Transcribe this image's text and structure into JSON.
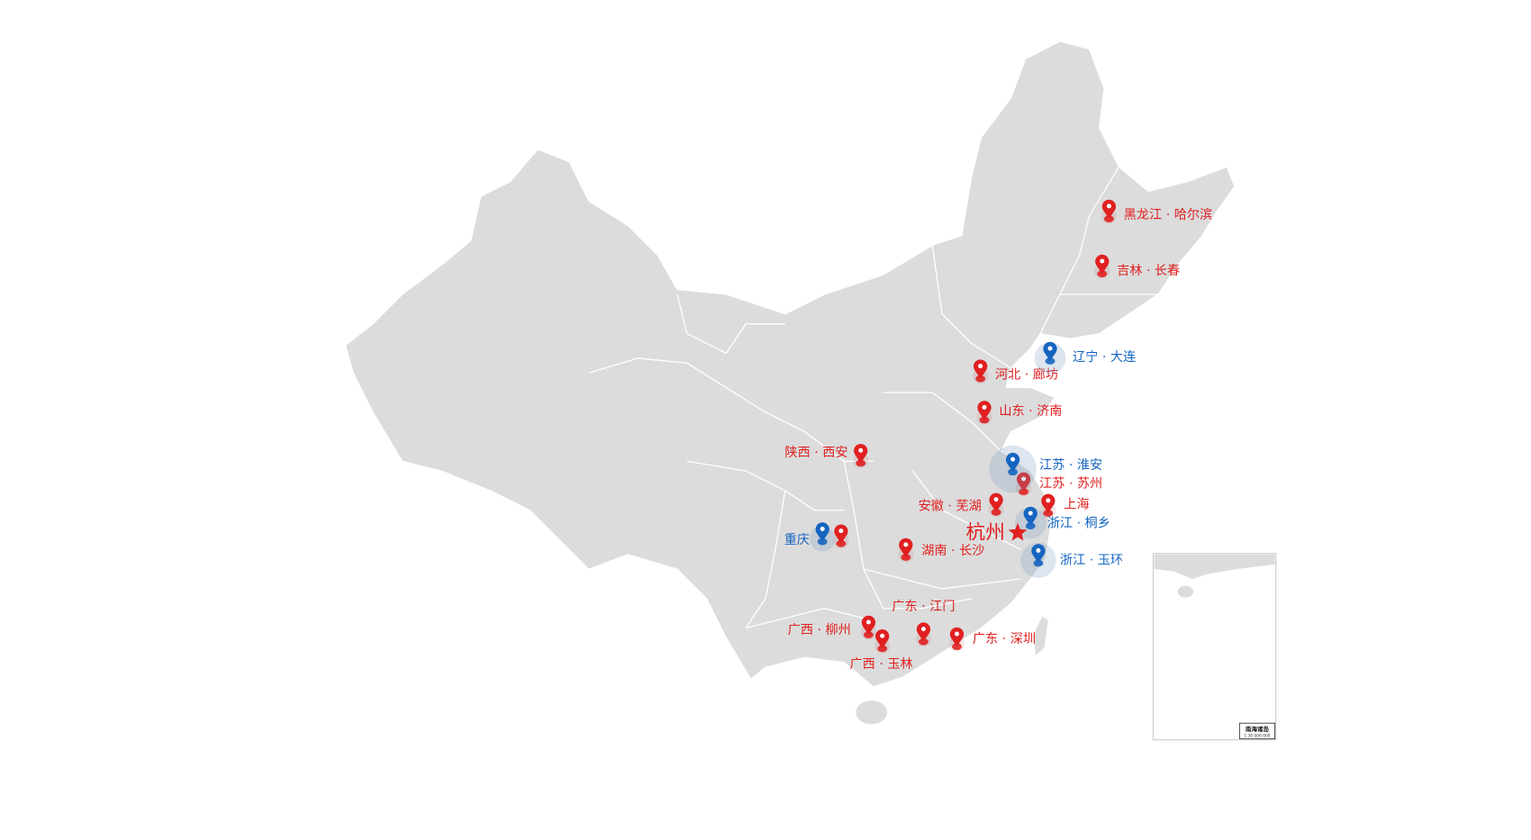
{
  "colors": {
    "land": "#dcdcdc",
    "border": "#ffffff",
    "red": "#e02020",
    "blue": "#1565c0",
    "star": "#e02020"
  },
  "capital": {
    "label": "杭州",
    "icon": "star-icon"
  },
  "markers_red": [
    {
      "label": "黑龙江 · 哈尔滨"
    },
    {
      "label": "吉林 · 长春"
    },
    {
      "label": "河北 · 廊坊"
    },
    {
      "label": "山东 · 济南"
    },
    {
      "label": "陕西 · 西安"
    },
    {
      "label": "江苏 · 苏州"
    },
    {
      "label": "安徽 · 芜湖"
    },
    {
      "label": "上海"
    },
    {
      "label": "湖南 · 长沙"
    },
    {
      "label": ""
    },
    {
      "label": "广西 · 柳州"
    },
    {
      "label": "广西 · 玉林"
    },
    {
      "label": "广东 · 江门"
    },
    {
      "label": "广东 · 深圳"
    }
  ],
  "markers_blue": [
    {
      "label": "辽宁 · 大连"
    },
    {
      "label": "江苏 · 淮安"
    },
    {
      "label": "浙江 · 桐乡"
    },
    {
      "label": "浙江 · 玉环"
    },
    {
      "label": "重庆"
    }
  ],
  "inset": {
    "title": "南海诸岛",
    "scale": "1:30 000 000"
  }
}
